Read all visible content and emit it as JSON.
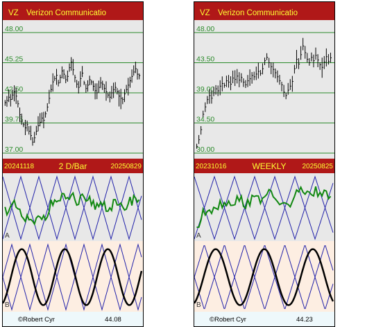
{
  "charts": [
    {
      "ticker": "VZ",
      "company": "Verizon Communicatio",
      "date_start": "20241118",
      "date_end": "20250829",
      "interval_label": "2 D/Bar",
      "price_labels": [
        "48.00",
        "45.25",
        "42.50",
        "39.75",
        "37.00"
      ],
      "price_ylim": [
        37.0,
        48.0
      ],
      "oscillator_a_label": "A",
      "oscillator_b_label": "B",
      "copyright": "©Robert Cyr",
      "last_price": "44.08"
    },
    {
      "ticker": "VZ",
      "company": "Verizon Communicatio",
      "date_start": "20231016",
      "date_end": "20250825",
      "interval_label": "WEEKLY",
      "price_labels": [
        "48.00",
        "43.50",
        "39.00",
        "34.50",
        "30.00"
      ],
      "price_ylim": [
        30.0,
        48.0
      ],
      "oscillator_a_label": "A",
      "oscillator_b_label": "B",
      "copyright": "©Robert Cyr",
      "last_price": "44.23"
    }
  ],
  "colors": {
    "header_bg": "#b01818",
    "header_text": "#ffff33",
    "price_bg": "#e8e8e8",
    "osc_a_bg": "#e8e8e8",
    "osc_b_bg": "#fdeee2",
    "footer_bg": "#eef8fb",
    "gridline": "#2a8a2a",
    "bars": "#000000",
    "green_line": "#118811",
    "blue_line": "#2222aa",
    "black_wave": "#000000"
  },
  "chart_data": [
    {
      "type": "line",
      "title": "Verizon Communicatio",
      "series": [
        {
          "name": "VZ",
          "values": [
            41.6,
            41.8,
            42.1,
            41.9,
            42.3,
            42.6,
            42.2,
            41.5,
            40.5,
            39.9,
            39.6,
            39.3,
            39.6,
            39.0,
            38.6,
            38.0,
            38.4,
            39.0,
            39.5,
            39.8,
            40.2,
            40.0,
            40.6,
            41.2,
            42.0,
            42.8,
            43.5,
            43.8,
            44.1,
            43.4,
            43.9,
            44.5,
            44.2,
            43.7,
            44.0,
            44.8,
            45.3,
            44.6,
            43.9,
            43.3,
            43.0,
            43.8,
            44.3,
            43.4,
            42.9,
            43.2,
            43.7,
            43.5,
            43.1,
            42.7,
            42.5,
            43.0,
            43.4,
            43.3,
            42.9,
            42.6,
            42.3,
            42.1,
            42.5,
            42.8,
            43.0,
            42.6,
            42.2,
            42.0,
            41.9,
            42.4,
            42.8,
            43.2,
            43.6,
            44.0,
            44.4,
            44.7,
            44.2,
            44.08
          ]
        }
      ],
      "ylim": [
        37.0,
        48.0
      ]
    },
    {
      "type": "line",
      "title": "Verizon Communicatio",
      "series": [
        {
          "name": "VZ",
          "values": [
            31.0,
            32.0,
            33.5,
            35.8,
            36.9,
            38.0,
            38.6,
            38.2,
            39.0,
            39.6,
            39.3,
            40.0,
            40.4,
            40.1,
            40.8,
            40.6,
            40.3,
            41.2,
            41.0,
            41.5,
            40.9,
            41.3,
            40.6,
            40.2,
            40.8,
            41.1,
            41.6,
            41.4,
            41.8,
            42.2,
            41.9,
            42.6,
            43.8,
            44.3,
            43.5,
            42.9,
            42.5,
            42.0,
            41.4,
            40.8,
            40.2,
            39.1,
            38.6,
            39.4,
            40.0,
            40.7,
            42.6,
            44.0,
            43.3,
            44.7,
            46.0,
            45.0,
            44.0,
            43.5,
            44.3,
            43.8,
            44.6,
            43.9,
            43.2,
            42.8,
            43.6,
            44.4,
            43.7,
            44.23
          ]
        }
      ],
      "ylim": [
        30.0,
        48.0
      ]
    }
  ]
}
